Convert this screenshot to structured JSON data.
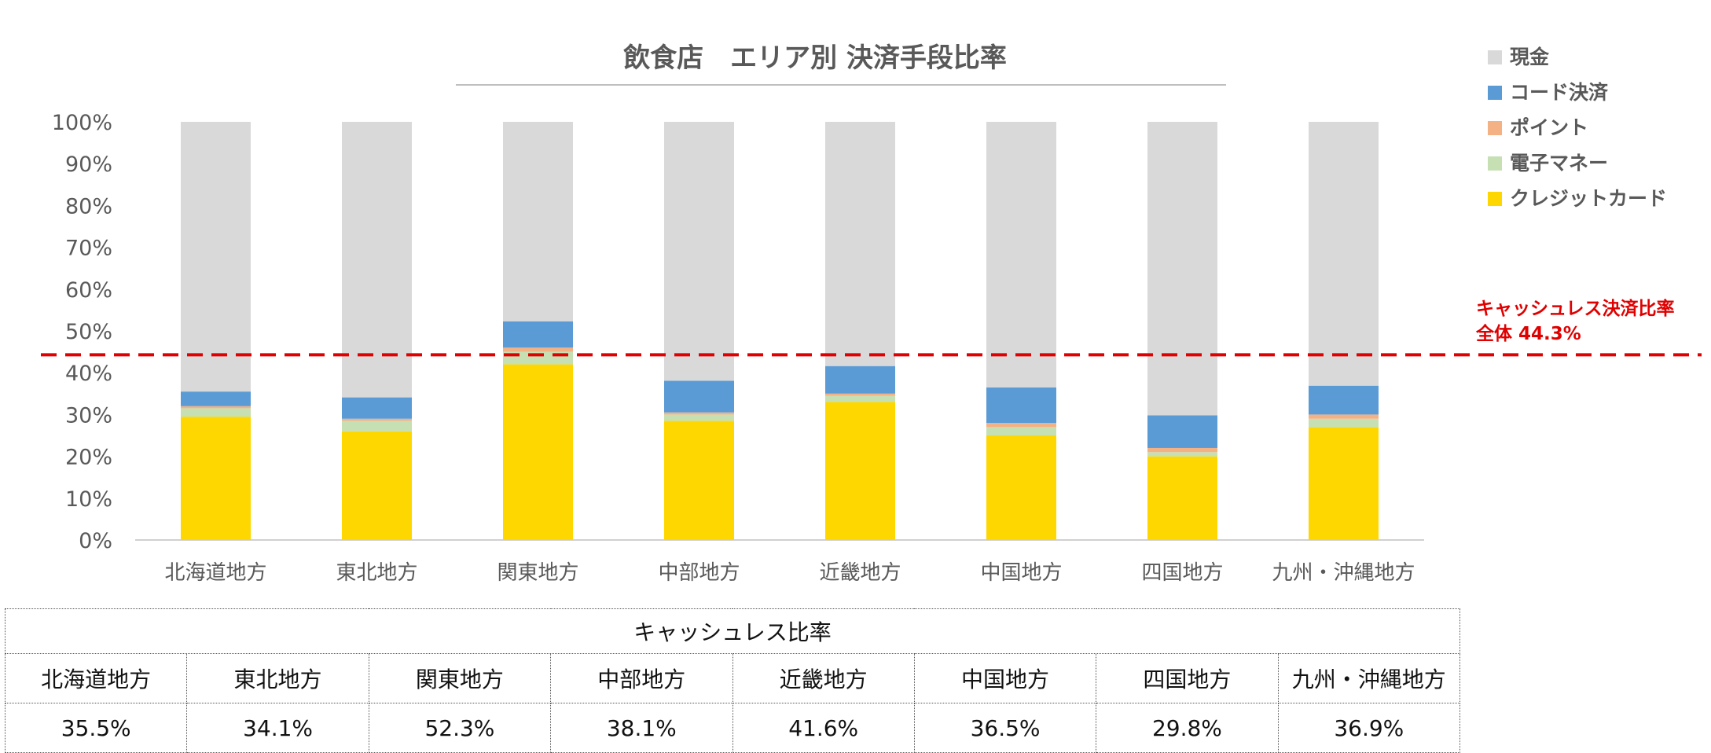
{
  "chart_data": {
    "type": "bar",
    "stacked": true,
    "title": "飲食店　エリア別 決済手段比率",
    "xlabel": "",
    "ylabel": "",
    "ylim": [
      0,
      100
    ],
    "yticks": [
      "0%",
      "10%",
      "20%",
      "30%",
      "40%",
      "50%",
      "60%",
      "70%",
      "80%",
      "90%",
      "100%"
    ],
    "categories": [
      "北海道地方",
      "東北地方",
      "関東地方",
      "中部地方",
      "近畿地方",
      "中国地方",
      "四国地方",
      "九州・沖縄地方"
    ],
    "series": [
      {
        "name": "クレジットカード",
        "color": "#FFD700",
        "values": [
          29.5,
          26.0,
          42.0,
          28.5,
          33.0,
          25.0,
          20.0,
          27.0
        ]
      },
      {
        "name": "電子マネー",
        "color": "#C6E0B4",
        "values": [
          2.0,
          2.5,
          3.0,
          1.5,
          1.5,
          2.0,
          1.0,
          2.0
        ]
      },
      {
        "name": "ポイント",
        "color": "#F4B183",
        "values": [
          0.5,
          0.5,
          1.0,
          0.5,
          0.5,
          1.0,
          1.0,
          1.0
        ]
      },
      {
        "name": "コード決済",
        "color": "#5B9BD5",
        "values": [
          3.5,
          5.1,
          6.3,
          7.6,
          6.6,
          8.5,
          7.8,
          6.9
        ]
      },
      {
        "name": "現金",
        "color": "#D9D9D9",
        "values": [
          64.5,
          65.9,
          47.7,
          61.9,
          58.4,
          63.5,
          70.2,
          63.1
        ]
      }
    ],
    "legend": {
      "position": "top-right",
      "items": [
        {
          "name": "現金",
          "color": "#D9D9D9"
        },
        {
          "name": "コード決済",
          "color": "#5B9BD5"
        },
        {
          "name": "ポイント",
          "color": "#F4B183"
        },
        {
          "name": "電子マネー",
          "color": "#C6E0B4"
        },
        {
          "name": "クレジットカード",
          "color": "#FFD700"
        }
      ]
    },
    "reference_line": {
      "value": 44.3,
      "color": "#E00000",
      "label_line1": "キャッシュレス決済比率",
      "label_line2": "全体 44.3%"
    }
  },
  "table": {
    "header": "キャッシュレス比率",
    "regions": [
      "北海道地方",
      "東北地方",
      "関東地方",
      "中部地方",
      "近畿地方",
      "中国地方",
      "四国地方",
      "九州・沖縄地方"
    ],
    "values": [
      "35.5%",
      "34.1%",
      "52.3%",
      "38.1%",
      "41.6%",
      "36.5%",
      "29.8%",
      "36.9%"
    ]
  }
}
